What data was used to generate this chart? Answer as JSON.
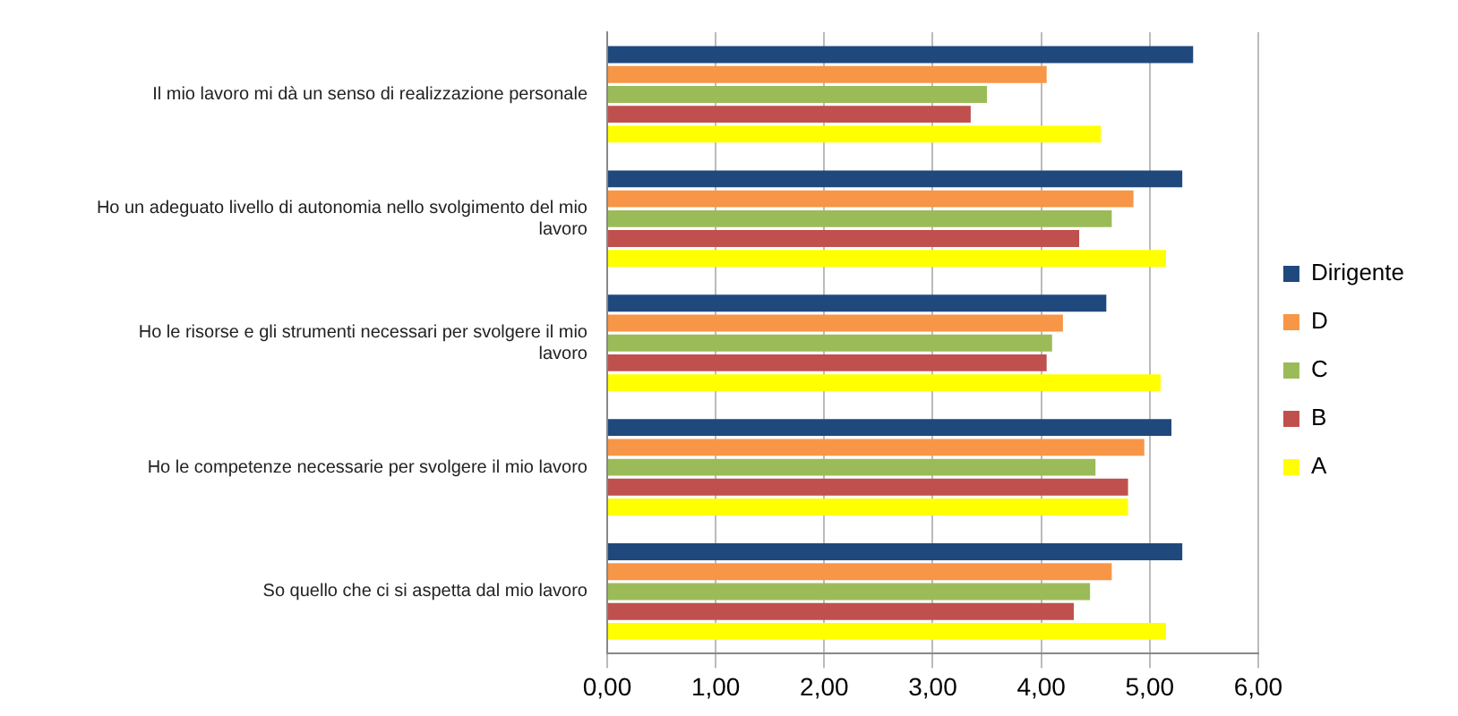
{
  "chart_data": {
    "type": "bar",
    "orientation": "horizontal",
    "categories": [
      "Il mio lavoro mi dà un senso di realizzazione personale",
      "Ho un adeguato livello di autonomia nello svolgimento del mio lavoro",
      "Ho le risorse e gli strumenti necessari per svolgere il mio lavoro",
      "Ho le competenze necessarie per svolgere il mio lavoro",
      "So quello che ci si aspetta dal mio lavoro"
    ],
    "series": [
      {
        "name": "Dirigente",
        "color": "#1f497d",
        "values": [
          5.4,
          5.3,
          4.6,
          5.2,
          5.3
        ]
      },
      {
        "name": "D",
        "color": "#f79646",
        "values": [
          4.05,
          4.85,
          4.2,
          4.95,
          4.65
        ]
      },
      {
        "name": "C",
        "color": "#9bbb59",
        "values": [
          3.5,
          4.65,
          4.1,
          4.5,
          4.45
        ]
      },
      {
        "name": "B",
        "color": "#c0504d",
        "values": [
          3.35,
          4.35,
          4.05,
          4.8,
          4.3
        ]
      },
      {
        "name": "A",
        "color": "#ffff00",
        "values": [
          4.55,
          5.15,
          5.1,
          4.8,
          5.15
        ]
      }
    ],
    "xlim": [
      0,
      6
    ],
    "xticks": [
      {
        "value": 0,
        "label": "0,00"
      },
      {
        "value": 1,
        "label": "1,00"
      },
      {
        "value": 2,
        "label": "2,00"
      },
      {
        "value": 3,
        "label": "3,00"
      },
      {
        "value": 4,
        "label": "4,00"
      },
      {
        "value": 5,
        "label": "5,00"
      },
      {
        "value": 6,
        "label": "6,00"
      }
    ],
    "grid": "x",
    "legend": "right"
  }
}
